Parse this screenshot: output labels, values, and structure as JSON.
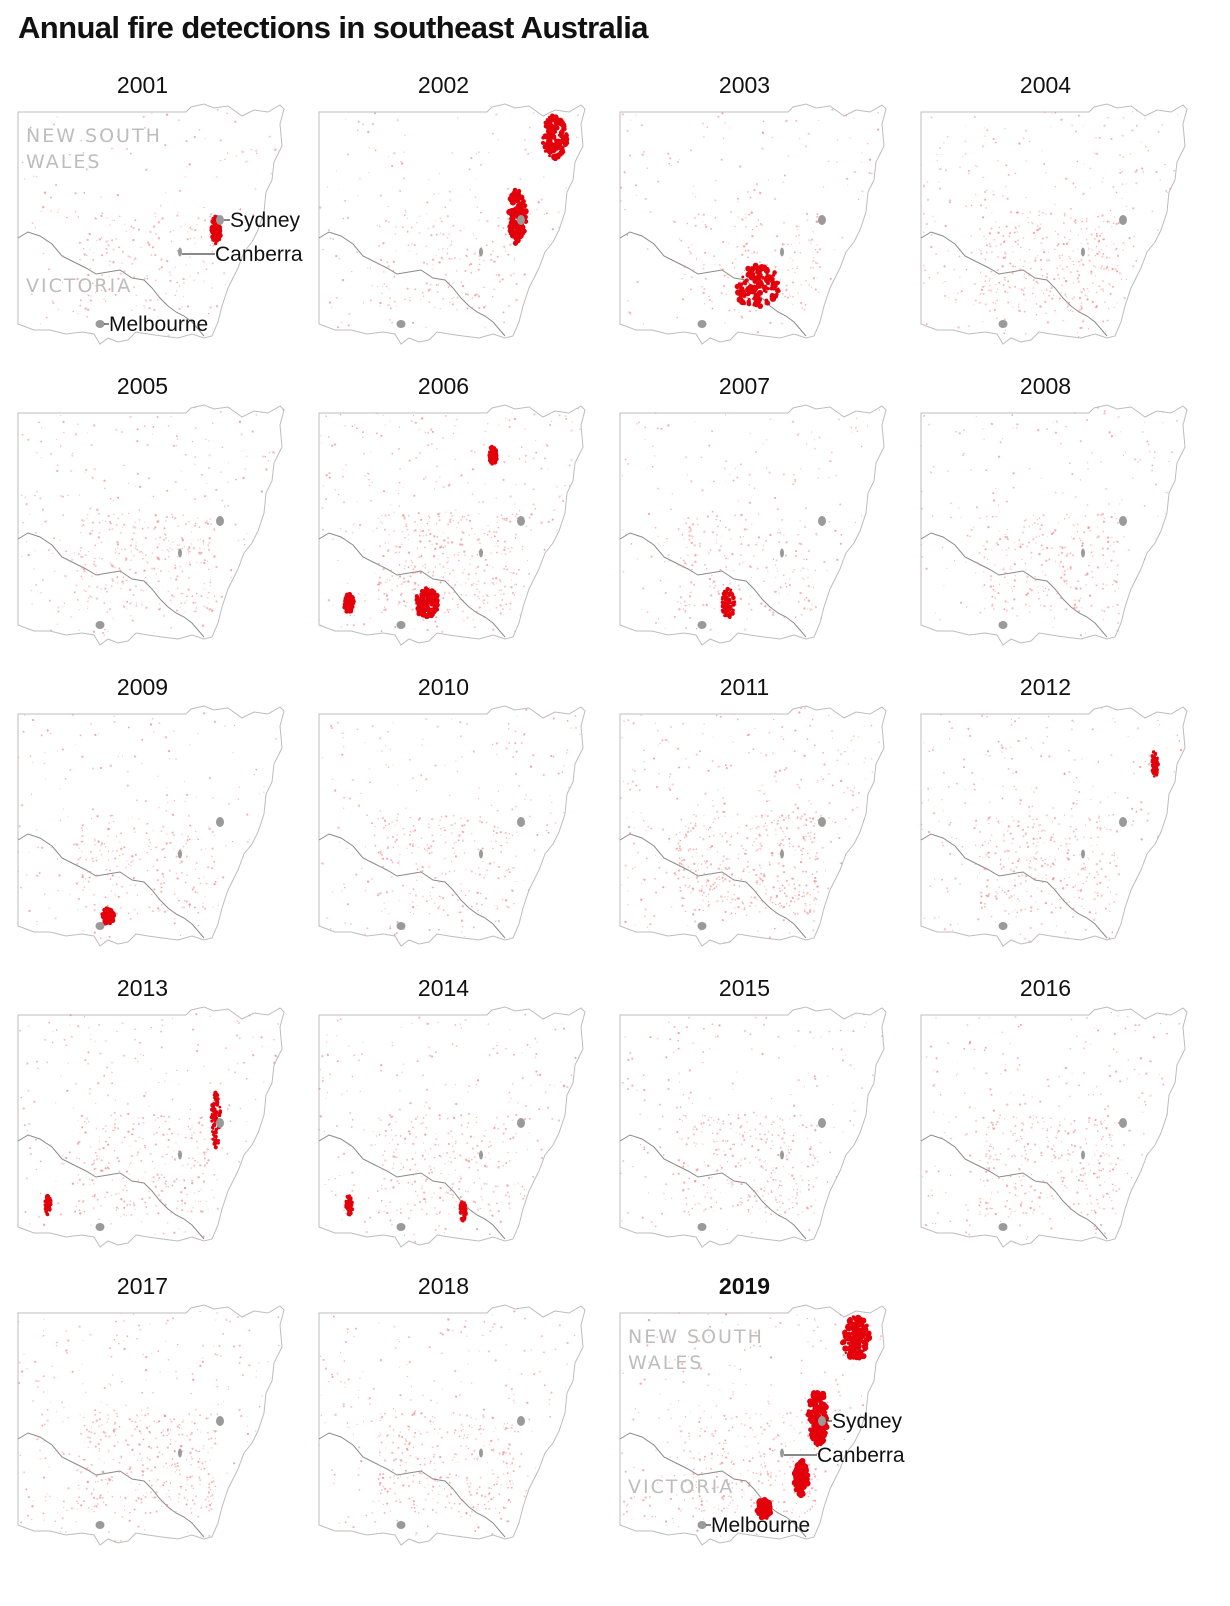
{
  "title": "Annual fire detections in southeast Australia",
  "colors": {
    "fire_light": "#f08a8a",
    "fire_strong": "#e3000b",
    "border": "#8a8a8a",
    "city": "#9a9a9a",
    "state_label": "#bdbdbd"
  },
  "labels": {
    "state_nsw_line1": "NEW SOUTH",
    "state_nsw_line2": "WALES",
    "state_vic": "VICTORIA",
    "city_sydney": "Sydney",
    "city_canberra": "Canberra",
    "city_melbourne": "Melbourne"
  },
  "panels": [
    {
      "year": "2001",
      "highlight": false,
      "labeled": true,
      "activity": 0.25,
      "clusters": [
        [
          "sydney",
          0.6
        ]
      ]
    },
    {
      "year": "2002",
      "highlight": false,
      "labeled": false,
      "activity": 0.3,
      "clusters": [
        [
          "ne",
          0.9
        ],
        [
          "coast_mid",
          0.9
        ]
      ]
    },
    {
      "year": "2003",
      "highlight": false,
      "labeled": false,
      "activity": 0.3,
      "clusters": [
        [
          "alps",
          1.0
        ]
      ]
    },
    {
      "year": "2004",
      "highlight": false,
      "labeled": false,
      "activity": 0.7,
      "clusters": []
    },
    {
      "year": "2005",
      "highlight": false,
      "labeled": false,
      "activity": 0.6,
      "clusters": []
    },
    {
      "year": "2006",
      "highlight": false,
      "labeled": false,
      "activity": 0.75,
      "clusters": [
        [
          "vic_alps",
          0.9
        ],
        [
          "west_vic",
          0.5
        ],
        [
          "north_inland",
          0.5
        ]
      ]
    },
    {
      "year": "2007",
      "highlight": false,
      "labeled": false,
      "activity": 0.35,
      "clusters": [
        [
          "vic_alps",
          0.5
        ]
      ]
    },
    {
      "year": "2008",
      "highlight": false,
      "labeled": false,
      "activity": 0.45,
      "clusters": []
    },
    {
      "year": "2009",
      "highlight": false,
      "labeled": false,
      "activity": 0.4,
      "clusters": [
        [
          "central_vic",
          0.6
        ]
      ]
    },
    {
      "year": "2010",
      "highlight": false,
      "labeled": false,
      "activity": 0.45,
      "clusters": []
    },
    {
      "year": "2011",
      "highlight": false,
      "labeled": false,
      "activity": 0.9,
      "clusters": []
    },
    {
      "year": "2012",
      "highlight": false,
      "labeled": false,
      "activity": 0.6,
      "clusters": [
        [
          "ne_coast",
          0.4
        ]
      ]
    },
    {
      "year": "2013",
      "highlight": false,
      "labeled": false,
      "activity": 0.55,
      "clusters": [
        [
          "coast_mid",
          0.45
        ],
        [
          "west_vic",
          0.3
        ]
      ]
    },
    {
      "year": "2014",
      "highlight": false,
      "labeled": false,
      "activity": 0.5,
      "clusters": [
        [
          "west_vic",
          0.35
        ],
        [
          "east_gipps",
          0.35
        ]
      ]
    },
    {
      "year": "2015",
      "highlight": false,
      "labeled": false,
      "activity": 0.5,
      "clusters": []
    },
    {
      "year": "2016",
      "highlight": false,
      "labeled": false,
      "activity": 0.6,
      "clusters": []
    },
    {
      "year": "2017",
      "highlight": false,
      "labeled": false,
      "activity": 0.7,
      "clusters": []
    },
    {
      "year": "2018",
      "highlight": false,
      "labeled": false,
      "activity": 0.6,
      "clusters": []
    },
    {
      "year": "2019",
      "highlight": true,
      "labeled": true,
      "activity": 0.55,
      "clusters": [
        [
          "ne",
          1.0
        ],
        [
          "coast_mid",
          1.0
        ],
        [
          "sydney",
          0.8
        ],
        [
          "south_coast",
          0.9
        ],
        [
          "east_gipps",
          0.8
        ]
      ]
    }
  ]
}
